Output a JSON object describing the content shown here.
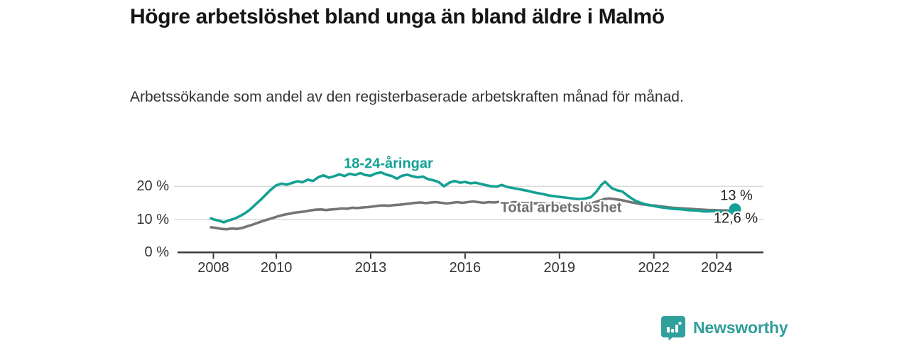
{
  "header": {
    "title": "Högre arbetslöshet bland unga än bland äldre i Malmö",
    "subtitle": "Arbetssökande som andel av den registerbaserade arbetskraften månad för månad."
  },
  "chart_data": {
    "type": "line",
    "title": "Högre arbetslöshet bland unga än bland äldre i Malmö",
    "xlabel": "",
    "ylabel": "",
    "unit": "%",
    "grid": "horizontal",
    "legend_position": "inline-labels",
    "xlim": [
      2007.9,
      2025.5
    ],
    "ylim": [
      0,
      26
    ],
    "x_ticks": [
      {
        "label": "2008",
        "value": 2008
      },
      {
        "label": "2010",
        "value": 2010
      },
      {
        "label": "2013",
        "value": 2013
      },
      {
        "label": "2016",
        "value": 2016
      },
      {
        "label": "2019",
        "value": 2019
      },
      {
        "label": "2022",
        "value": 2022
      },
      {
        "label": "2024",
        "value": 2024
      }
    ],
    "y_ticks": [
      {
        "label": "0 %",
        "value": 0
      },
      {
        "label": "10 %",
        "value": 10
      },
      {
        "label": "20 %",
        "value": 20
      }
    ],
    "series": [
      {
        "name": "18-24-åringar",
        "color": "#14a095",
        "end_label": "13 %",
        "end_value": 13.0,
        "end_dot": true,
        "points": [
          [
            2007.92,
            10.3
          ],
          [
            2008.0,
            10.0
          ],
          [
            2008.17,
            9.6
          ],
          [
            2008.33,
            9.1
          ],
          [
            2008.5,
            9.7
          ],
          [
            2008.67,
            10.2
          ],
          [
            2008.83,
            10.9
          ],
          [
            2009.0,
            11.8
          ],
          [
            2009.17,
            13.0
          ],
          [
            2009.33,
            14.4
          ],
          [
            2009.5,
            15.9
          ],
          [
            2009.67,
            17.5
          ],
          [
            2009.83,
            19.0
          ],
          [
            2010.0,
            20.3
          ],
          [
            2010.17,
            20.8
          ],
          [
            2010.33,
            20.5
          ],
          [
            2010.5,
            21.0
          ],
          [
            2010.67,
            21.5
          ],
          [
            2010.83,
            21.2
          ],
          [
            2011.0,
            22.0
          ],
          [
            2011.17,
            21.6
          ],
          [
            2011.33,
            22.7
          ],
          [
            2011.5,
            23.3
          ],
          [
            2011.67,
            22.6
          ],
          [
            2011.83,
            23.0
          ],
          [
            2012.0,
            23.6
          ],
          [
            2012.17,
            23.1
          ],
          [
            2012.33,
            23.8
          ],
          [
            2012.5,
            23.4
          ],
          [
            2012.67,
            24.0
          ],
          [
            2012.83,
            23.4
          ],
          [
            2013.0,
            23.2
          ],
          [
            2013.17,
            23.9
          ],
          [
            2013.33,
            24.2
          ],
          [
            2013.5,
            23.5
          ],
          [
            2013.67,
            23.1
          ],
          [
            2013.83,
            22.3
          ],
          [
            2014.0,
            23.2
          ],
          [
            2014.17,
            23.5
          ],
          [
            2014.33,
            23.0
          ],
          [
            2014.5,
            22.7
          ],
          [
            2014.67,
            22.9
          ],
          [
            2014.83,
            22.1
          ],
          [
            2015.0,
            21.8
          ],
          [
            2015.17,
            21.2
          ],
          [
            2015.33,
            20.0
          ],
          [
            2015.5,
            21.1
          ],
          [
            2015.67,
            21.6
          ],
          [
            2015.83,
            21.1
          ],
          [
            2016.0,
            21.3
          ],
          [
            2016.17,
            20.9
          ],
          [
            2016.33,
            21.1
          ],
          [
            2016.5,
            20.7
          ],
          [
            2016.67,
            20.3
          ],
          [
            2016.83,
            20.0
          ],
          [
            2017.0,
            19.9
          ],
          [
            2017.17,
            20.4
          ],
          [
            2017.33,
            19.8
          ],
          [
            2017.5,
            19.5
          ],
          [
            2017.67,
            19.2
          ],
          [
            2017.83,
            18.9
          ],
          [
            2018.0,
            18.6
          ],
          [
            2018.17,
            18.2
          ],
          [
            2018.33,
            17.9
          ],
          [
            2018.5,
            17.6
          ],
          [
            2018.67,
            17.2
          ],
          [
            2018.83,
            17.0
          ],
          [
            2019.0,
            16.8
          ],
          [
            2019.17,
            16.6
          ],
          [
            2019.33,
            16.4
          ],
          [
            2019.5,
            16.2
          ],
          [
            2019.67,
            16.1
          ],
          [
            2019.83,
            16.3
          ],
          [
            2020.0,
            16.7
          ],
          [
            2020.17,
            18.3
          ],
          [
            2020.33,
            20.4
          ],
          [
            2020.45,
            21.4
          ],
          [
            2020.58,
            20.2
          ],
          [
            2020.67,
            19.4
          ],
          [
            2020.83,
            18.8
          ],
          [
            2021.0,
            18.4
          ],
          [
            2021.08,
            17.8
          ],
          [
            2021.25,
            16.6
          ],
          [
            2021.42,
            15.6
          ],
          [
            2021.58,
            15.0
          ],
          [
            2021.75,
            14.5
          ],
          [
            2021.92,
            14.2
          ],
          [
            2022.08,
            13.9
          ],
          [
            2022.25,
            13.6
          ],
          [
            2022.42,
            13.4
          ],
          [
            2022.58,
            13.2
          ],
          [
            2022.75,
            13.1
          ],
          [
            2022.92,
            13.0
          ],
          [
            2023.08,
            12.8
          ],
          [
            2023.25,
            12.7
          ],
          [
            2023.42,
            12.6
          ],
          [
            2023.58,
            12.4
          ],
          [
            2023.75,
            12.4
          ],
          [
            2023.92,
            12.5
          ],
          [
            2024.08,
            12.3
          ],
          [
            2024.25,
            12.1
          ],
          [
            2024.42,
            12.3
          ],
          [
            2024.58,
            13.0
          ]
        ]
      },
      {
        "name": "Total arbetslöshet",
        "color": "#757575",
        "end_label": "12,6 %",
        "end_value": 12.6,
        "end_dot": false,
        "points": [
          [
            2007.92,
            7.6
          ],
          [
            2008.08,
            7.4
          ],
          [
            2008.25,
            7.1
          ],
          [
            2008.42,
            7.0
          ],
          [
            2008.58,
            7.2
          ],
          [
            2008.75,
            7.1
          ],
          [
            2008.92,
            7.4
          ],
          [
            2009.08,
            7.9
          ],
          [
            2009.25,
            8.4
          ],
          [
            2009.42,
            9.0
          ],
          [
            2009.58,
            9.5
          ],
          [
            2009.75,
            10.0
          ],
          [
            2009.92,
            10.5
          ],
          [
            2010.08,
            11.0
          ],
          [
            2010.25,
            11.4
          ],
          [
            2010.42,
            11.7
          ],
          [
            2010.58,
            12.0
          ],
          [
            2010.75,
            12.2
          ],
          [
            2010.92,
            12.4
          ],
          [
            2011.08,
            12.7
          ],
          [
            2011.25,
            12.9
          ],
          [
            2011.42,
            13.0
          ],
          [
            2011.58,
            12.8
          ],
          [
            2011.75,
            13.0
          ],
          [
            2011.92,
            13.1
          ],
          [
            2012.08,
            13.3
          ],
          [
            2012.25,
            13.2
          ],
          [
            2012.42,
            13.5
          ],
          [
            2012.58,
            13.4
          ],
          [
            2012.75,
            13.6
          ],
          [
            2012.92,
            13.7
          ],
          [
            2013.08,
            13.9
          ],
          [
            2013.25,
            14.1
          ],
          [
            2013.42,
            14.2
          ],
          [
            2013.58,
            14.1
          ],
          [
            2013.75,
            14.3
          ],
          [
            2013.92,
            14.4
          ],
          [
            2014.08,
            14.6
          ],
          [
            2014.25,
            14.8
          ],
          [
            2014.42,
            15.0
          ],
          [
            2014.58,
            15.1
          ],
          [
            2014.75,
            14.9
          ],
          [
            2014.92,
            15.1
          ],
          [
            2015.08,
            15.2
          ],
          [
            2015.25,
            15.0
          ],
          [
            2015.42,
            14.8
          ],
          [
            2015.58,
            15.0
          ],
          [
            2015.75,
            15.2
          ],
          [
            2015.92,
            15.0
          ],
          [
            2016.08,
            15.2
          ],
          [
            2016.25,
            15.4
          ],
          [
            2016.42,
            15.2
          ],
          [
            2016.58,
            15.0
          ],
          [
            2016.75,
            15.2
          ],
          [
            2016.92,
            15.1
          ],
          [
            2017.08,
            15.3
          ],
          [
            2017.25,
            15.1
          ],
          [
            2017.42,
            15.0
          ],
          [
            2017.58,
            15.2
          ],
          [
            2017.75,
            15.0
          ],
          [
            2017.92,
            14.9
          ],
          [
            2018.08,
            15.0
          ],
          [
            2018.25,
            14.8
          ],
          [
            2018.42,
            14.9
          ],
          [
            2018.58,
            14.7
          ],
          [
            2018.75,
            14.6
          ],
          [
            2018.92,
            14.7
          ],
          [
            2019.08,
            14.6
          ],
          [
            2019.25,
            14.5
          ],
          [
            2019.42,
            14.4
          ],
          [
            2019.58,
            14.5
          ],
          [
            2019.75,
            14.4
          ],
          [
            2019.92,
            14.6
          ],
          [
            2020.08,
            15.0
          ],
          [
            2020.25,
            15.6
          ],
          [
            2020.42,
            16.1
          ],
          [
            2020.58,
            16.3
          ],
          [
            2020.75,
            16.1
          ],
          [
            2020.92,
            15.9
          ],
          [
            2021.08,
            15.6
          ],
          [
            2021.25,
            15.2
          ],
          [
            2021.42,
            14.9
          ],
          [
            2021.58,
            14.6
          ],
          [
            2021.75,
            14.4
          ],
          [
            2021.92,
            14.2
          ],
          [
            2022.08,
            14.1
          ],
          [
            2022.25,
            13.9
          ],
          [
            2022.42,
            13.7
          ],
          [
            2022.58,
            13.5
          ],
          [
            2022.75,
            13.4
          ],
          [
            2022.92,
            13.3
          ],
          [
            2023.08,
            13.2
          ],
          [
            2023.25,
            13.1
          ],
          [
            2023.42,
            13.0
          ],
          [
            2023.58,
            12.9
          ],
          [
            2023.75,
            12.8
          ],
          [
            2023.92,
            12.8
          ],
          [
            2024.08,
            12.7
          ],
          [
            2024.25,
            12.7
          ],
          [
            2024.42,
            12.6
          ],
          [
            2024.58,
            12.6
          ]
        ]
      }
    ]
  },
  "footer": {
    "brand": "Newsworthy",
    "brand_color": "#2f9e99"
  }
}
